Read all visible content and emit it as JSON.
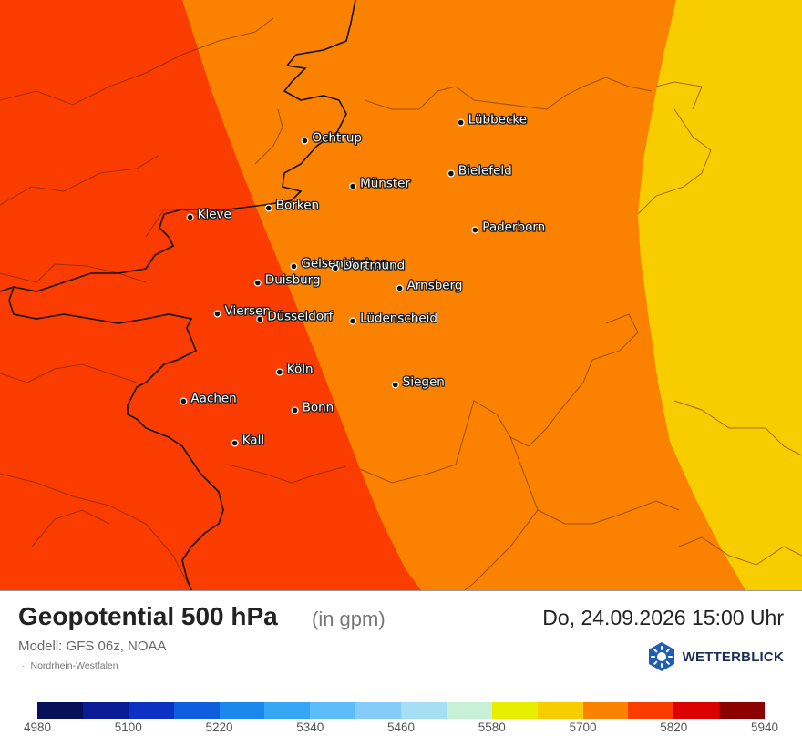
{
  "legend": {
    "title": "Geopotential 500 hPa",
    "unit": "(in gpm)",
    "datetime": "Do, 24.09.2026 15:00 Uhr",
    "model": "Modell: GFS 06z, NOAA",
    "region": "Nordrhein-Westfalen",
    "brand": "WETTERBLICK",
    "brand_icon": "sun-logo-icon",
    "scale_colors": [
      "#061058",
      "#0a1c95",
      "#0c31c3",
      "#0f5ee0",
      "#1a88ec",
      "#35a6f4",
      "#5ebcf8",
      "#85cdf8",
      "#a6def3",
      "#c7f0d6",
      "#e8ee00",
      "#f8cd00",
      "#fa8200",
      "#fa3c00",
      "#dc0000",
      "#8c0000"
    ],
    "scale_ticks": [
      "4980",
      "5100",
      "5220",
      "5340",
      "5460",
      "5580",
      "5700",
      "5820",
      "5940"
    ]
  },
  "map": {
    "zones": [
      {
        "band": "5760-5820",
        "color": "#fa3c00"
      },
      {
        "band": "5700-5760",
        "color": "#fa8200"
      },
      {
        "band": "5640-5700",
        "color": "#f8cd00"
      }
    ],
    "cities": [
      {
        "name": "Ochtrup",
        "lat": 52.21,
        "lon": 7.19
      },
      {
        "name": "Lübbecke",
        "lat": 52.31,
        "lon": 8.62
      },
      {
        "name": "Bielefeld",
        "lat": 52.03,
        "lon": 8.53
      },
      {
        "name": "Münster",
        "lat": 51.96,
        "lon": 7.63
      },
      {
        "name": "Borken",
        "lat": 51.84,
        "lon": 6.86
      },
      {
        "name": "Kleve",
        "lat": 51.79,
        "lon": 6.14
      },
      {
        "name": "Paderborn",
        "lat": 51.72,
        "lon": 8.75
      },
      {
        "name": "Gelsenkirchen",
        "lat": 51.52,
        "lon": 7.09
      },
      {
        "name": "Dortmund",
        "lat": 51.51,
        "lon": 7.47
      },
      {
        "name": "Duisburg",
        "lat": 51.43,
        "lon": 6.76
      },
      {
        "name": "Arnsberg",
        "lat": 51.4,
        "lon": 8.06
      },
      {
        "name": "Viersen",
        "lat": 51.26,
        "lon": 6.39
      },
      {
        "name": "Düsseldorf",
        "lat": 51.23,
        "lon": 6.78
      },
      {
        "name": "Lüdenscheid",
        "lat": 51.22,
        "lon": 7.63
      },
      {
        "name": "Köln",
        "lat": 50.94,
        "lon": 6.96
      },
      {
        "name": "Siegen",
        "lat": 50.87,
        "lon": 8.02
      },
      {
        "name": "Aachen",
        "lat": 50.78,
        "lon": 6.08
      },
      {
        "name": "Bonn",
        "lat": 50.73,
        "lon": 7.1
      },
      {
        "name": "Kall",
        "lat": 50.55,
        "lon": 6.55
      }
    ]
  }
}
